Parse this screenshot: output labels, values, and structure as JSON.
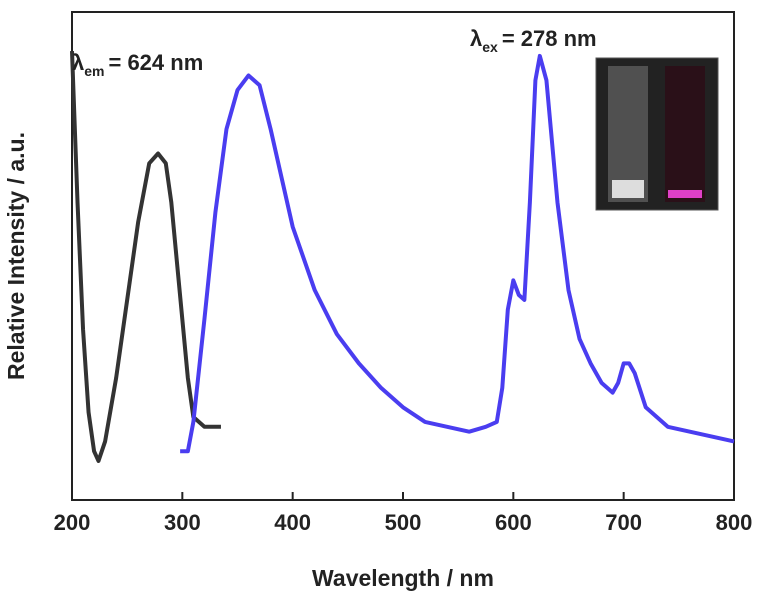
{
  "chart_data": {
    "type": "line",
    "x_label": "Wavelength / nm",
    "y_label": "Relative Intensity / a.u.",
    "annotations": [
      {
        "symbol": "λ",
        "subscript": "em",
        "text": "= 624 nm"
      },
      {
        "symbol": "λ",
        "subscript": "ex",
        "text": "= 278 nm"
      }
    ],
    "xlim": [
      200,
      800
    ],
    "xticks": [
      200,
      300,
      400,
      500,
      600,
      700,
      800
    ],
    "ylim": [
      0,
      100
    ],
    "series": [
      {
        "color": "#333333",
        "x": [
          200,
          205,
          210,
          215,
          220,
          224,
          230,
          240,
          250,
          260,
          270,
          278,
          285,
          290,
          295,
          300,
          305,
          310,
          315,
          320,
          330,
          335
        ],
        "values": [
          92,
          61,
          35,
          18,
          10,
          8,
          12,
          25,
          41,
          57,
          69,
          71,
          69,
          61,
          49,
          37,
          25,
          17,
          16,
          15,
          15,
          15
        ]
      },
      {
        "color": "#4a3df0",
        "x": [
          298,
          305,
          310,
          320,
          330,
          340,
          350,
          360,
          365,
          370,
          380,
          390,
          400,
          420,
          440,
          460,
          480,
          500,
          520,
          540,
          560,
          575,
          585,
          590,
          595,
          600,
          605,
          610,
          615,
          620,
          624,
          630,
          640,
          650,
          660,
          670,
          680,
          690,
          695,
          700,
          705,
          710,
          720,
          740,
          760,
          780,
          800
        ],
        "values": [
          10,
          10,
          16,
          37,
          59,
          76,
          84,
          87,
          86,
          85,
          76,
          66,
          56,
          43,
          34,
          28,
          23,
          19,
          16,
          15,
          14,
          15,
          16,
          23,
          39,
          45,
          42,
          41,
          61,
          86,
          91,
          86,
          61,
          43,
          33,
          28,
          24,
          22,
          24,
          28,
          28,
          26,
          19,
          15,
          14,
          13,
          12
        ]
      }
    ]
  }
}
